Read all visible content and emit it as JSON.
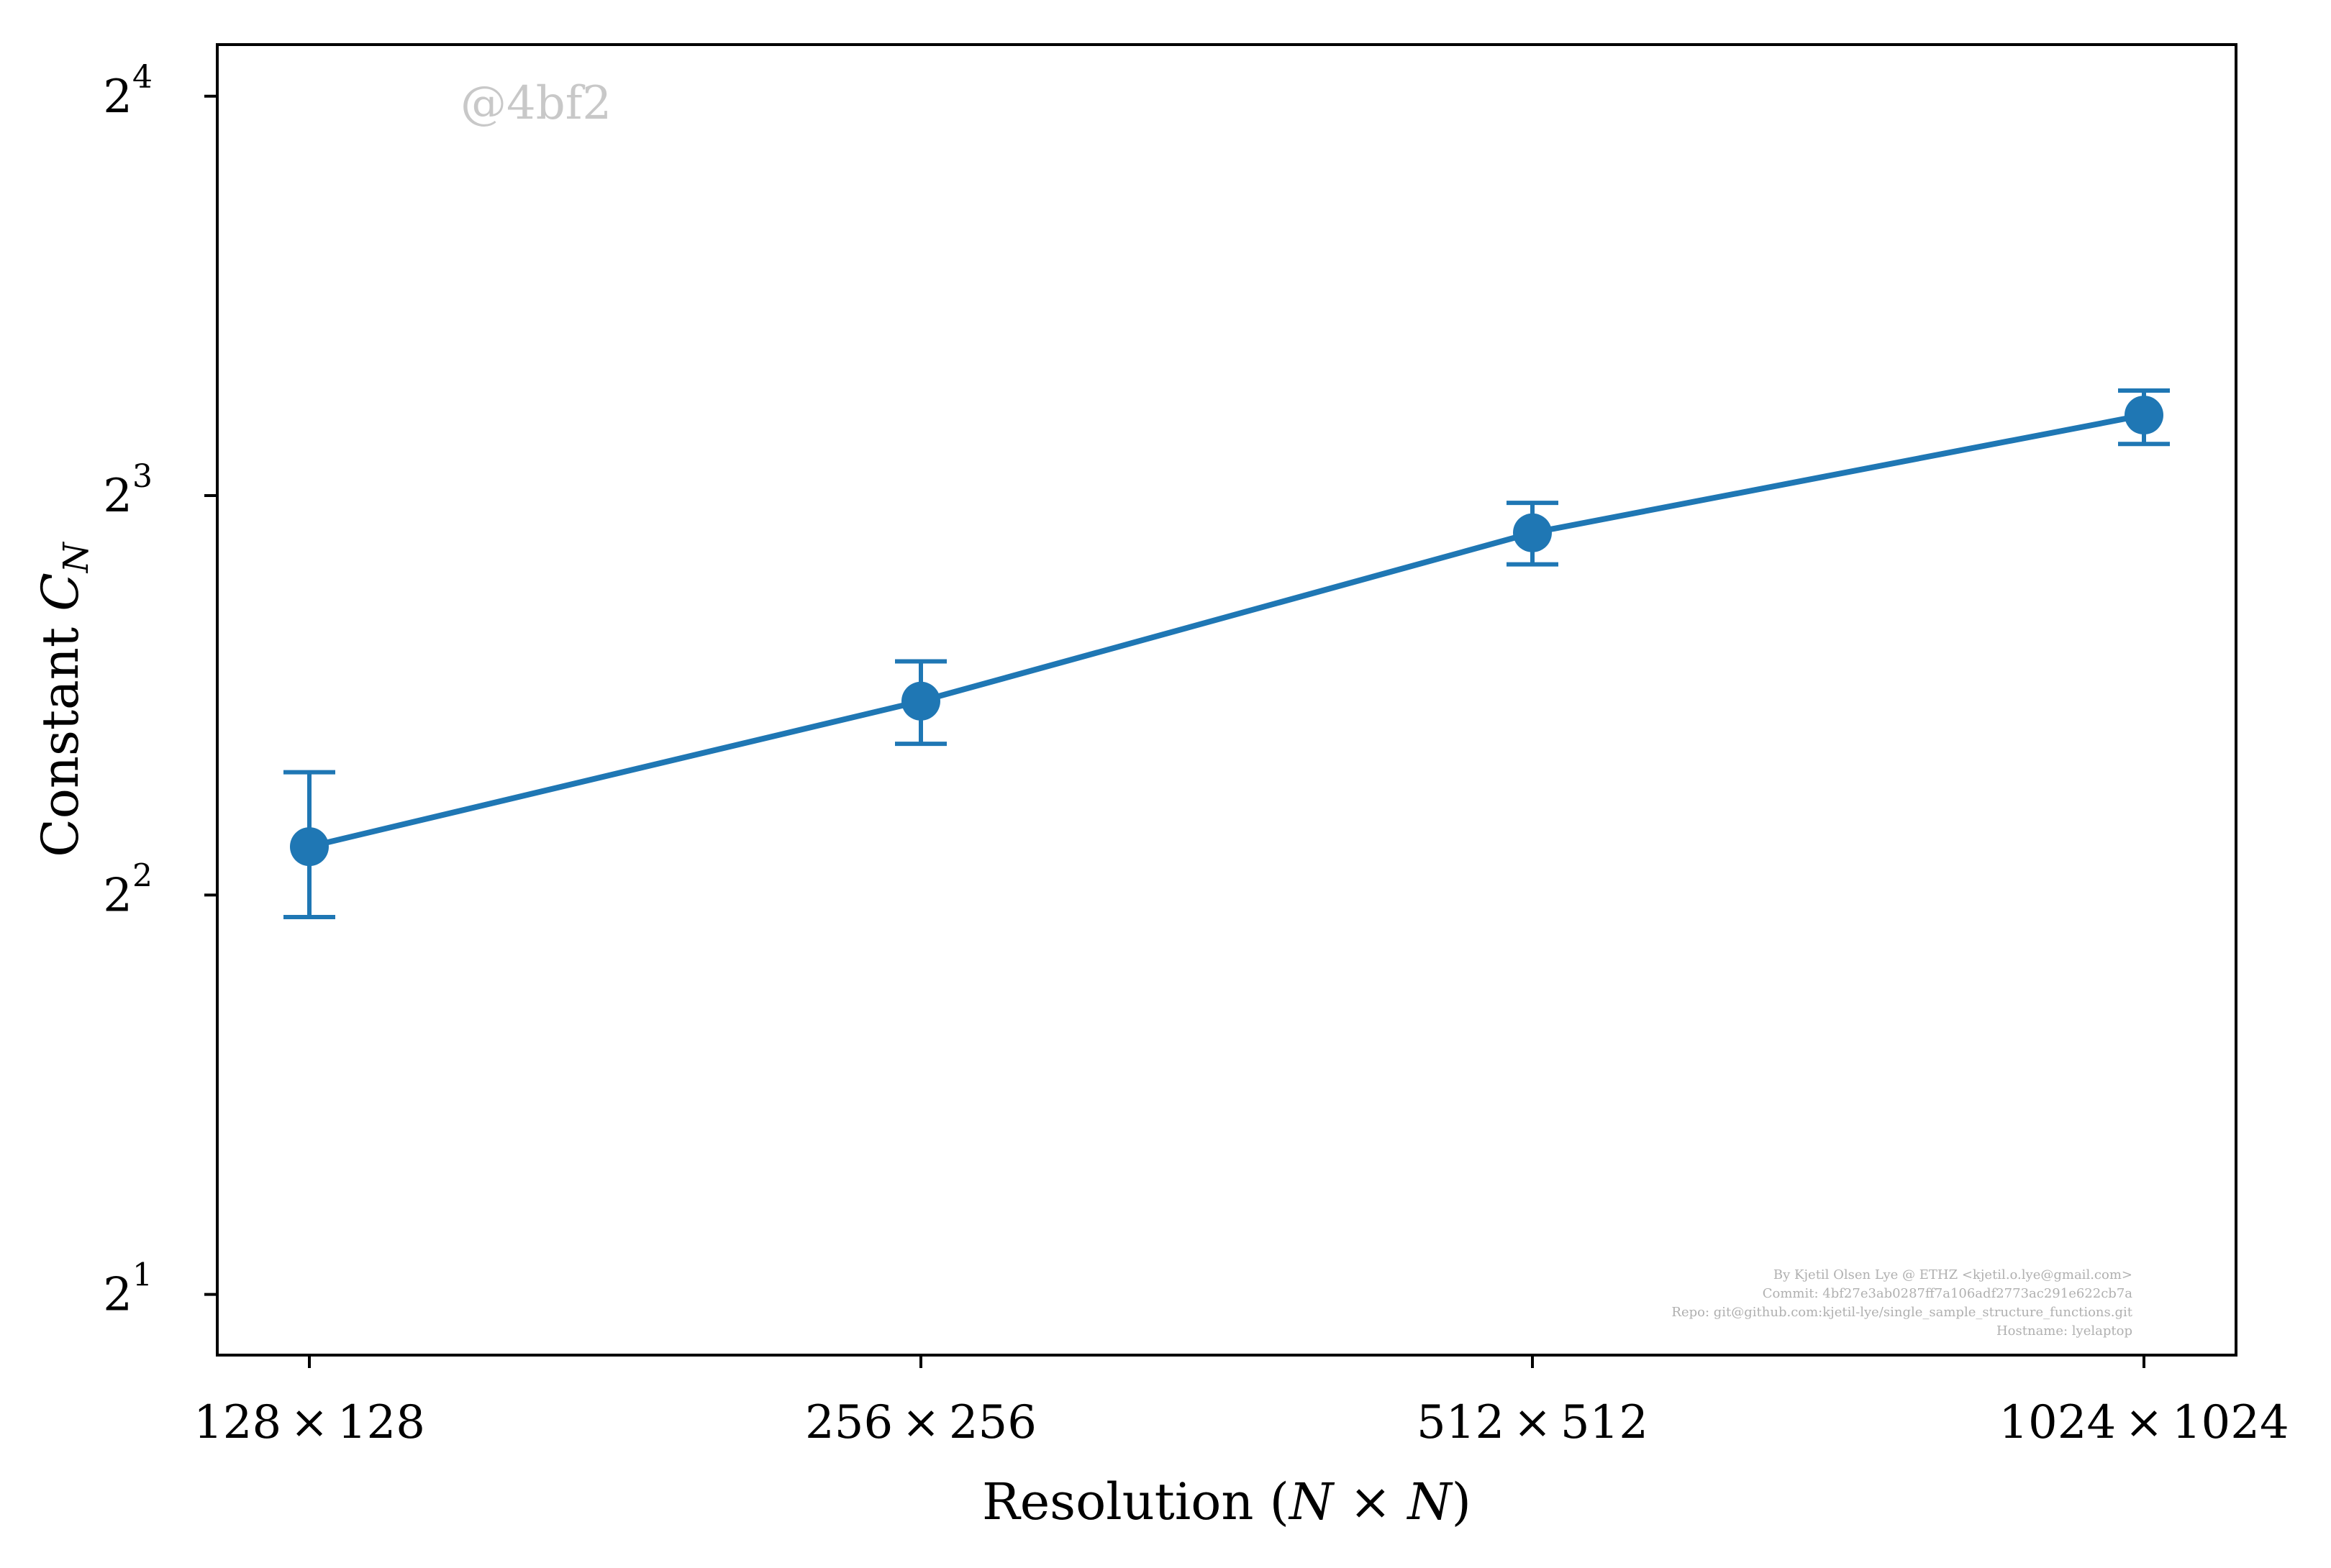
{
  "chart_data": {
    "type": "line",
    "categories": [
      "128 × 128",
      "256 × 256",
      "512 × 512",
      "1024 × 1024"
    ],
    "category_parts": [
      {
        "a": "128",
        "op": "×",
        "b": "128"
      },
      {
        "a": "256",
        "op": "×",
        "b": "256"
      },
      {
        "a": "512",
        "op": "×",
        "b": "512"
      },
      {
        "a": "1024",
        "op": "×",
        "b": "1024"
      }
    ],
    "series": [
      {
        "values": [
          4.35,
          5.6,
          7.5,
          9.2
        ],
        "error_low": [
          3.85,
          5.2,
          7.1,
          8.75
        ],
        "error_high": [
          4.95,
          6.0,
          7.9,
          9.6
        ],
        "color": "#1f77b4"
      }
    ],
    "y_scale": "log2",
    "ylim": [
      1.8,
      17.5
    ],
    "y_ticks": [
      {
        "base": "2",
        "exp": "1",
        "value": 2
      },
      {
        "base": "2",
        "exp": "2",
        "value": 4
      },
      {
        "base": "2",
        "exp": "3",
        "value": 8
      },
      {
        "base": "2",
        "exp": "4",
        "value": 16
      }
    ],
    "xlabel": {
      "pre": "Resolution (",
      "n1": "N",
      "op": " × ",
      "n2": "N",
      "post": ")"
    },
    "ylabel": {
      "pre": "Constant ",
      "var": "C",
      "sub": "N"
    },
    "grid": false,
    "watermark": "@4bf2",
    "credits": [
      "By Kjetil Olsen Lye @ ETHZ <kjetil.o.lye@gmail.com>",
      "Commit: 4bf27e3ab0287ff7a106adf2773ac291e622cb7a",
      "Repo: git@github.com:kjetil-lye/single_sample_structure_functions.git",
      "Hostname: lyelaptop"
    ]
  }
}
